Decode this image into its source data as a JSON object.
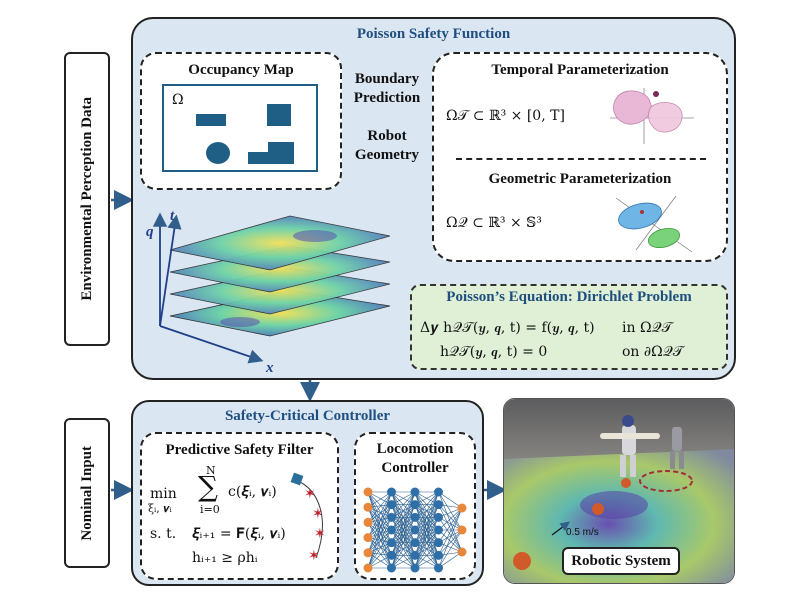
{
  "side": {
    "env_perception": "Environmental Perception Data",
    "nominal_input": "Nominal Input"
  },
  "poisson": {
    "title": "Poisson Safety Function",
    "occupancy_title": "Occupancy Map",
    "omega": "Ω",
    "boundary_prediction": "Boundary Prediction",
    "robot_geometry": "Robot Geometry",
    "temporal_title": "Temporal Parameterization",
    "temporal_eq": "Ω𝒯 ⊂ ℝ³ × [0, T]",
    "geometric_title": "Geometric Parameterization",
    "geometric_eq": "Ω𝒬 ⊂ ℝ³ × 𝕊³",
    "axis_q": "q",
    "axis_t": "t",
    "axis_x": "x",
    "dirichlet_title": "Poisson’s Equation: Dirichlet Problem",
    "dirichlet_eq1": "Δ𝒚 h𝒬𝒯(𝒚, 𝒒, t) = f(𝒚, 𝒒, t)",
    "dirichlet_dom1": "in  Ω𝒬𝒯",
    "dirichlet_eq2": "h𝒬𝒯(𝒚, 𝒒, t) = 0",
    "dirichlet_dom2": "on ∂Ω𝒬𝒯"
  },
  "controller": {
    "title": "Safety-Critical Controller",
    "psf_title": "Predictive Safety Filter",
    "min_label": "min",
    "min_sub": "ξᵢ, 𝝂ᵢ",
    "sum_top": "N",
    "sum_bottom": "i=0",
    "cost": "c(𝝃ᵢ, 𝝂ᵢ)",
    "st_label": "s. t.",
    "constraint1": "𝝃ᵢ₊₁ = 𝐅(𝝃ᵢ, 𝝂ᵢ)",
    "constraint2": "hᵢ₊₁ ≥ ρhᵢ",
    "locomotion_title": "Locomotion Controller"
  },
  "robotic": {
    "label": "Robotic System",
    "speed": "0.5 m/s"
  },
  "colors": {
    "panel_bg": "#dbe6f3",
    "title_blue": "#1f4f7f",
    "arrow": "#2f5f8a",
    "obstacle": "#1f5f86",
    "green_box": "#dff0d6"
  }
}
